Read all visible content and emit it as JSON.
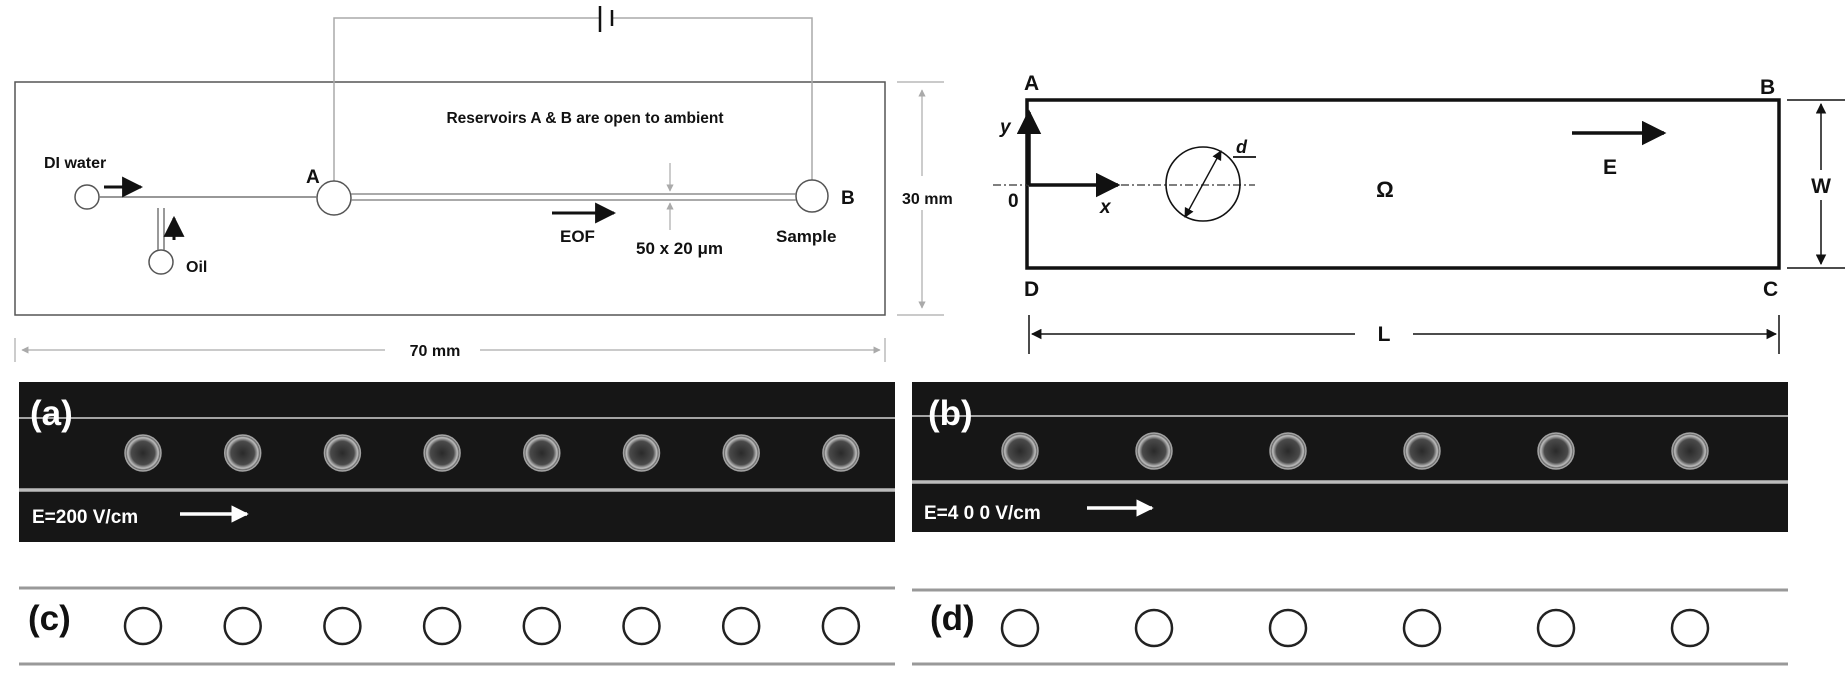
{
  "schematic": {
    "reservoir_note": "Reservoirs A & B are open to ambient",
    "inlet_water": "DI water",
    "inlet_oil": "Oil",
    "reservoir_a": "A",
    "reservoir_b": "B",
    "sample": "Sample",
    "eof": "EOF",
    "channel_size": "50 x 20 μm",
    "height": "30 mm",
    "length": "70 mm"
  },
  "domain": {
    "corner_a": "A",
    "corner_b": "B",
    "corner_c": "C",
    "corner_d": "D",
    "axis_y": "y",
    "axis_x": "x",
    "origin": "0",
    "diameter": "d",
    "region": "Ω",
    "field": "E",
    "width": "W",
    "length": "L"
  },
  "micrographs": {
    "a": {
      "label": "(a)",
      "field_label": "E=200 V/cm",
      "droplet_count": 8
    },
    "b": {
      "label": "(b)",
      "field_label": "E=4 0 0 V/cm",
      "droplet_count": 6
    }
  },
  "simulations": {
    "c": {
      "label": "(c)",
      "droplet_count": 8
    },
    "d": {
      "label": "(d)",
      "droplet_count": 6
    }
  },
  "colors": {
    "micrograph_bg": "#161616",
    "channel_wall": "#c9c9c9",
    "sim_line": "#999999",
    "ink": "#111111"
  }
}
